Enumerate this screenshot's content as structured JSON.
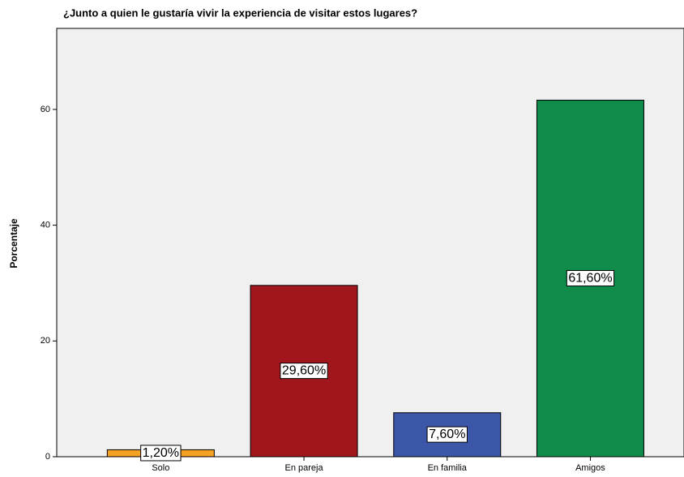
{
  "chart_data": {
    "type": "bar",
    "title": "¿Junto a quien le gustaría vivir la experiencia de visitar estos lugares?",
    "y_label": "Porcentaje",
    "categories": [
      "Solo",
      "En pareja",
      "En familia",
      "Amigos"
    ],
    "values": [
      1.2,
      29.6,
      7.6,
      61.6
    ],
    "value_labels": [
      "1,20%",
      "29,60%",
      "7,60%",
      "61,60%"
    ],
    "colors": [
      "#f5a122",
      "#a1151c",
      "#3d57a8",
      "#0f8b4a"
    ],
    "ylim": [
      0,
      74
    ],
    "yticks": [
      0,
      20,
      40,
      60
    ]
  }
}
